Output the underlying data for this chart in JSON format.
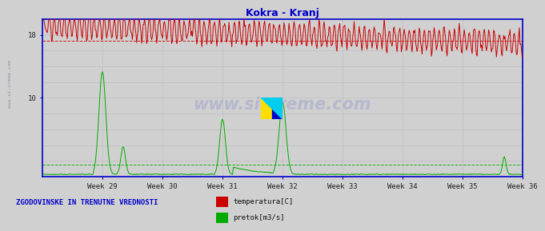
{
  "title": "Kokra - Kranj",
  "title_color": "#0000cc",
  "background_color": "#d0d0d0",
  "plot_bg_color": "#d0d0d0",
  "x_labels": [
    "Week 29",
    "Week 30",
    "Week 31",
    "Week 32",
    "Week 33",
    "Week 34",
    "Week 35",
    "Week 36"
  ],
  "y_ticks": [
    10,
    18
  ],
  "y_min": 0,
  "y_max": 20,
  "temp_avg": 17.2,
  "flow_avg": 1.5,
  "temp_color": "#cc0000",
  "flow_color": "#00aa00",
  "watermark": "www.si-vreme.com",
  "bottom_label": "ZGODOVINSKE IN TRENUTNE VREDNOSTI",
  "legend_temp": "temperatura[C]",
  "legend_flow": "pretok[m3/s]",
  "grid_color": "#bbbbbb",
  "axis_color": "#0000cc",
  "n_points": 672
}
